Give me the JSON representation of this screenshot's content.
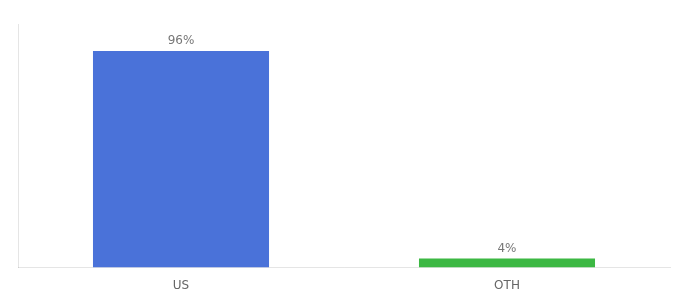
{
  "chart_data": {
    "type": "bar",
    "categories": [
      "US",
      "OTH"
    ],
    "values": [
      96,
      4
    ],
    "value_labels": [
      "96%",
      "4%"
    ],
    "colors": [
      "#4a72d9",
      "#3cb843"
    ],
    "ylim": [
      0,
      108
    ],
    "yticks": [],
    "grid": false,
    "data_labels": true,
    "tick_labels": "x"
  }
}
